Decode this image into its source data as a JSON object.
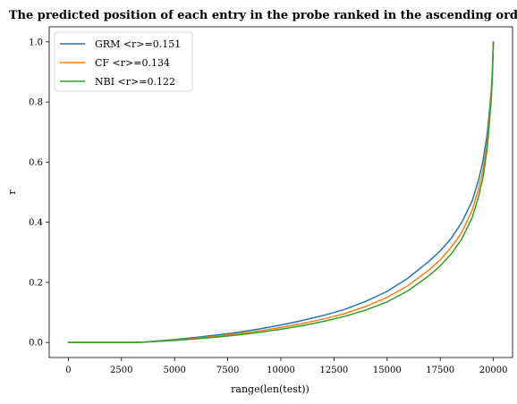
{
  "chart_data": {
    "type": "line",
    "title": "The predicted position of each entry in the probe ranked in the ascending order",
    "xlabel": "range(len(test))",
    "ylabel": "r",
    "xlim": [
      -900,
      20900
    ],
    "ylim": [
      -0.05,
      1.05
    ],
    "xticks": [
      0,
      2500,
      5000,
      7500,
      10000,
      12500,
      15000,
      17500,
      20000
    ],
    "xtick_labels": [
      "0",
      "2500",
      "5000",
      "7500",
      "10000",
      "12500",
      "15000",
      "17500",
      "20000"
    ],
    "yticks": [
      0.0,
      0.2,
      0.4,
      0.6,
      0.8,
      1.0
    ],
    "ytick_labels": [
      "0.0",
      "0.2",
      "0.4",
      "0.6",
      "0.8",
      "1.0"
    ],
    "grid": false,
    "legend_position": "top-left",
    "series": [
      {
        "name": "GRM <r>=0.151",
        "color": "#1f77b4",
        "x": [
          0,
          1000,
          2000,
          3000,
          3500,
          4000,
          5000,
          6000,
          7000,
          8000,
          9000,
          10000,
          11000,
          12000,
          13000,
          14000,
          15000,
          16000,
          17000,
          17500,
          18000,
          18500,
          19000,
          19300,
          19500,
          19700,
          19800,
          19900,
          19950,
          20000
        ],
        "y": [
          0.0,
          0.0,
          0.0,
          0.0,
          0.001,
          0.004,
          0.01,
          0.017,
          0.025,
          0.034,
          0.045,
          0.058,
          0.073,
          0.09,
          0.11,
          0.137,
          0.17,
          0.215,
          0.272,
          0.305,
          0.345,
          0.398,
          0.47,
          0.54,
          0.6,
          0.69,
          0.76,
          0.84,
          0.9,
          1.0
        ]
      },
      {
        "name": "CF <r>=0.134",
        "color": "#ff7f0e",
        "x": [
          0,
          1000,
          2000,
          3000,
          3500,
          4000,
          5000,
          6000,
          7000,
          8000,
          9000,
          10000,
          11000,
          12000,
          13000,
          14000,
          15000,
          16000,
          17000,
          17500,
          18000,
          18500,
          19000,
          19300,
          19500,
          19700,
          19800,
          19900,
          19950,
          20000
        ],
        "y": [
          0.0,
          0.0,
          0.0,
          0.0,
          0.001,
          0.003,
          0.008,
          0.014,
          0.021,
          0.029,
          0.039,
          0.05,
          0.063,
          0.078,
          0.096,
          0.12,
          0.15,
          0.19,
          0.243,
          0.275,
          0.315,
          0.365,
          0.44,
          0.51,
          0.57,
          0.66,
          0.74,
          0.83,
          0.89,
          1.0
        ]
      },
      {
        "name": "NBI <r>=0.122",
        "color": "#2ca02c",
        "x": [
          0,
          1000,
          2000,
          3000,
          3500,
          4000,
          5000,
          6000,
          7000,
          8000,
          9000,
          10000,
          11000,
          12000,
          13000,
          14000,
          15000,
          16000,
          17000,
          17500,
          18000,
          18500,
          19000,
          19300,
          19500,
          19700,
          19800,
          19900,
          19950,
          20000
        ],
        "y": [
          0.0,
          0.0,
          0.0,
          0.0,
          0.001,
          0.003,
          0.007,
          0.012,
          0.018,
          0.025,
          0.034,
          0.044,
          0.056,
          0.07,
          0.087,
          0.108,
          0.135,
          0.173,
          0.224,
          0.255,
          0.293,
          0.343,
          0.415,
          0.485,
          0.545,
          0.64,
          0.72,
          0.81,
          0.88,
          1.0
        ]
      }
    ]
  }
}
